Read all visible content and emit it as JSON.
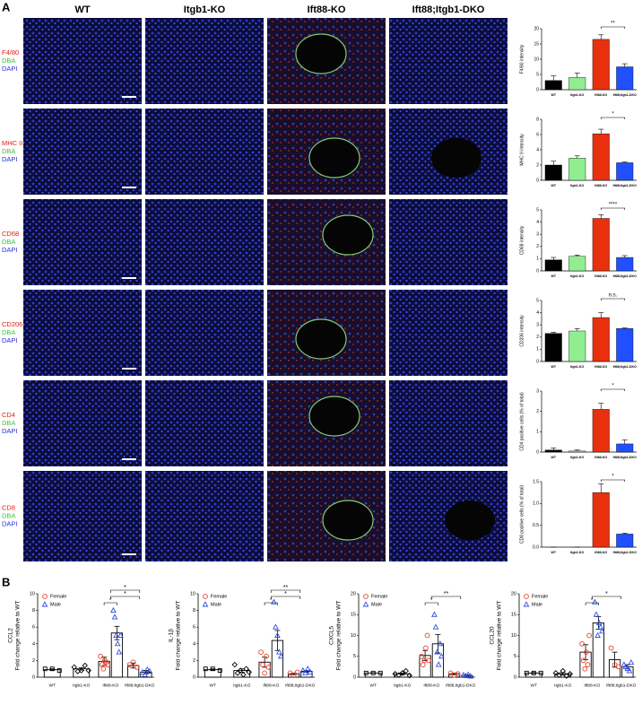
{
  "panel_labels": [
    "A",
    "B"
  ],
  "columns": [
    "WT",
    "Itgb1-KO",
    "Ift88-KO",
    "Ift88;Itgb1-DKO"
  ],
  "rows": [
    {
      "stain": "F4/80",
      "dba": "DBA",
      "dapi": "DAPI"
    },
    {
      "stain": "MHC II",
      "dba": "DBA",
      "dapi": "DAPI"
    },
    {
      "stain": "CD68",
      "dba": "DBA",
      "dapi": "DAPI"
    },
    {
      "stain": "CD206",
      "dba": "DBA",
      "dapi": "DAPI"
    },
    {
      "stain": "CD4",
      "dba": "DBA",
      "dapi": "DAPI"
    },
    {
      "stain": "CD8",
      "dba": "DBA",
      "dapi": "DAPI"
    }
  ],
  "chart_data": [
    {
      "type": "bar",
      "ylabel": "F4/80 intensity",
      "categories": [
        "WT",
        "Itgb1-KO",
        "Ift88-KO",
        "Ift88;Itgb1-DKO"
      ],
      "colors": [
        "#000000",
        "#90ee90",
        "#e8300e",
        "#2050ff"
      ],
      "values": [
        3,
        4,
        16.5,
        7.5
      ],
      "errors": [
        1.5,
        1.5,
        1.5,
        1
      ],
      "ylim": [
        0,
        20
      ],
      "yticks": [
        0,
        5,
        10,
        15,
        20
      ],
      "annotations": [
        "**"
      ]
    },
    {
      "type": "bar",
      "ylabel": "MHC II intensity",
      "categories": [
        "WT",
        "Itgb1-KO",
        "Ift88-KO",
        "Ift88;Itgb1-DKO"
      ],
      "colors": [
        "#000000",
        "#90ee90",
        "#e8300e",
        "#2050ff"
      ],
      "values": [
        2,
        2.9,
        6.1,
        2.3
      ],
      "errors": [
        0.5,
        0.3,
        0.6,
        0.1
      ],
      "ylim": [
        0,
        8
      ],
      "yticks": [
        0,
        2,
        4,
        6,
        8
      ],
      "annotations": [
        "*"
      ]
    },
    {
      "type": "bar",
      "ylabel": "CD68 intensity",
      "categories": [
        "WT",
        "Itgb1-KO",
        "Ift88-KO",
        "Ift88;Itgb1-DKO"
      ],
      "colors": [
        "#000000",
        "#90ee90",
        "#e8300e",
        "#2050ff"
      ],
      "values": [
        0.9,
        1.2,
        4.3,
        1.1
      ],
      "errors": [
        0.2,
        0.1,
        0.3,
        0.15
      ],
      "ylim": [
        0,
        5
      ],
      "yticks": [
        0,
        1,
        2,
        3,
        4,
        5
      ],
      "annotations": [
        "****"
      ]
    },
    {
      "type": "bar",
      "ylabel": "CD206 intensity",
      "categories": [
        "WT",
        "Itgb1-KO",
        "Ift88-KO",
        "Ift88;Itgb1-DKO"
      ],
      "colors": [
        "#000000",
        "#90ee90",
        "#e8300e",
        "#2050ff"
      ],
      "values": [
        2.3,
        2.5,
        3.6,
        2.7
      ],
      "errors": [
        0.1,
        0.2,
        0.4,
        0.05
      ],
      "ylim": [
        0,
        5
      ],
      "yticks": [
        0,
        1,
        2,
        3,
        4,
        5
      ],
      "annotations": [
        "n.s."
      ]
    },
    {
      "type": "bar",
      "ylabel": "CD4 positive cells (% of total)",
      "categories": [
        "WT",
        "Itgb1-KO",
        "Ift88-KO",
        "Ift88;Itgb1-DKO"
      ],
      "colors": [
        "#000000",
        "#90ee90",
        "#e8300e",
        "#2050ff"
      ],
      "values": [
        0.1,
        0.05,
        2.1,
        0.4
      ],
      "errors": [
        0.1,
        0.05,
        0.3,
        0.2
      ],
      "ylim": [
        0,
        3
      ],
      "yticks": [
        0,
        1,
        2,
        3
      ],
      "annotations": [
        "*"
      ]
    },
    {
      "type": "bar",
      "ylabel": "CD8 positive cells (% of total)",
      "categories": [
        "WT",
        "Itgb1-KO",
        "Ift88-KO",
        "Ift88;Itgb1-DKO"
      ],
      "colors": [
        "#000000",
        "#90ee90",
        "#e8300e",
        "#2050ff"
      ],
      "values": [
        0,
        0,
        1.25,
        0.3
      ],
      "errors": [
        0,
        0,
        0.2,
        0.02
      ],
      "ylim": [
        0,
        1.5
      ],
      "yticks": [
        {
          "value": 0,
          "label": "0.0"
        },
        {
          "value": 0.5,
          "label": "0.5"
        },
        {
          "value": 1,
          "label": "1.0"
        },
        {
          "value": 1.5,
          "label": "1.5"
        }
      ],
      "annotations": [
        "*"
      ]
    },
    {
      "type": "dotbar",
      "title": "CCL2",
      "ylabel": "Fold change relative to WT",
      "categories": [
        "WT",
        "Itgb1-KO",
        "Ift88-KO",
        "Ift88;Itgb1-DKO"
      ],
      "values": [
        0.9,
        1.0,
        null,
        null
      ],
      "errors": [
        0.1,
        0.15,
        null,
        null
      ],
      "points": [
        [
          1,
          1,
          0.8
        ],
        [
          1.2,
          0.7,
          0.8,
          1.4,
          0.8
        ],
        [],
        []
      ],
      "series": [
        {
          "name": "Female",
          "color": "#e8402a",
          "values": [
            null,
            null,
            1.9,
            1.4
          ],
          "errors": [
            null,
            null,
            0.5,
            0.3
          ],
          "points": [
            [],
            [],
            [
              2.5,
              1.5,
              1.0,
              2.0,
              1.8,
              1.5
            ],
            [
              1.5,
              1.8,
              1.2
            ]
          ]
        },
        {
          "name": "Male",
          "color": "#3050e0",
          "values": [
            null,
            null,
            5.3,
            0.6
          ],
          "errors": [
            null,
            null,
            0.8,
            0.2
          ],
          "points": [
            [],
            [],
            [
              8,
              7.2,
              5,
              4,
              3,
              5
            ],
            [
              0.6,
              0.3,
              0.9,
              0.7
            ]
          ]
        }
      ],
      "ylim": [
        0,
        10
      ],
      "yticks": [
        0,
        2,
        4,
        6,
        8,
        10
      ],
      "annotations": [
        "*",
        "*",
        "*"
      ]
    },
    {
      "type": "dotbar",
      "title": "IL-1β",
      "ylabel": "Fold change relative to WT",
      "categories": [
        "WT",
        "Itgb1-KO",
        "Ift88-KO",
        "Ift88;Itgb1-DKO"
      ],
      "values": [
        0.9,
        0.8,
        null,
        null
      ],
      "errors": [
        0.1,
        0.2,
        null,
        null
      ],
      "points": [
        [
          1,
          1,
          0.8
        ],
        [
          1.5,
          0.5,
          0.8,
          0.3,
          1.0,
          0.6
        ],
        [],
        []
      ],
      "series": [
        {
          "name": "Female",
          "color": "#e8402a",
          "values": [
            null,
            null,
            1.8,
            0.4
          ],
          "errors": [
            null,
            null,
            0.6,
            0.1
          ],
          "points": [
            [],
            [],
            [
              3,
              1.5,
              0.5,
              2.5,
              1.2
            ],
            [
              0.5,
              0.2,
              0.6
            ]
          ]
        },
        {
          "name": "Male",
          "color": "#3050e0",
          "values": [
            null,
            null,
            4.4,
            0.7
          ],
          "errors": [
            null,
            null,
            1.2,
            0.1
          ],
          "points": [
            [],
            [],
            [
              9,
              6,
              5,
              3,
              2.5
            ],
            [
              0.8,
              0.5,
              1.0,
              0.6
            ]
          ]
        }
      ],
      "ylim": [
        0,
        10
      ],
      "yticks": [
        0,
        2,
        4,
        6,
        8,
        10
      ],
      "annotations": [
        "*",
        "*",
        "**"
      ]
    },
    {
      "type": "dotbar",
      "title": "CXCL5",
      "ylabel": "Fold change relative to WT",
      "categories": [
        "WT",
        "Itgb1-KO",
        "Ift88-KO",
        "Ift88;Itgb1-DKO"
      ],
      "values": [
        1,
        0.8,
        null,
        null
      ],
      "errors": [
        0.05,
        0.2,
        null,
        null
      ],
      "points": [
        [
          1,
          1,
          1
        ],
        [
          0.8,
          0.5,
          1,
          1.5,
          0.4
        ],
        [],
        []
      ],
      "series": [
        {
          "name": "Female",
          "color": "#e8402a",
          "values": [
            null,
            null,
            5.2,
            0.8
          ],
          "errors": [
            null,
            null,
            1.2,
            0.2
          ],
          "points": [
            [],
            [],
            [
              5,
              3,
              4,
              7,
              10,
              4
            ],
            [
              1,
              0.5,
              0.8
            ]
          ]
        },
        {
          "name": "Male",
          "color": "#3050e0",
          "values": [
            null,
            null,
            8,
            0.4
          ],
          "errors": [
            null,
            null,
            2.2,
            0.1
          ],
          "points": [
            [],
            [],
            [
              15,
              12,
              6,
              3,
              8,
              5
            ],
            [
              0.5,
              0.3,
              0.6,
              0.2
            ]
          ]
        }
      ],
      "ylim": [
        0,
        20
      ],
      "yticks": [
        0,
        5,
        10,
        15,
        20
      ],
      "annotations": [
        "*",
        "**"
      ]
    },
    {
      "type": "dotbar",
      "title": "CCL20",
      "ylabel": "Fold change relative to WT",
      "categories": [
        "WT",
        "Itgb1-KO",
        "Ift88-KO",
        "Ift88;Itgb1-DKO"
      ],
      "values": [
        1,
        0.8,
        null,
        null
      ],
      "errors": [
        0.1,
        0.3,
        null,
        null
      ],
      "points": [
        [
          1,
          1,
          1
        ],
        [
          1,
          0.5,
          1.5,
          0.3,
          0.8
        ],
        [],
        []
      ],
      "series": [
        {
          "name": "Female",
          "color": "#e8402a",
          "values": [
            null,
            null,
            6,
            4.2
          ],
          "errors": [
            null,
            null,
            1.8,
            1.8
          ],
          "points": [
            [],
            [],
            [
              8,
              4,
              2,
              6,
              3,
              10
            ],
            [
              7,
              3,
              2.5
            ]
          ]
        },
        {
          "name": "Male",
          "color": "#3050e0",
          "values": [
            null,
            null,
            13,
            2.5
          ],
          "errors": [
            null,
            null,
            1.5,
            0.5
          ],
          "points": [
            [],
            [],
            [
              18,
              15,
              10,
              13,
              12,
              11
            ],
            [
              3,
              2.5,
              2,
              1.5,
              3.5
            ]
          ]
        }
      ],
      "ylim": [
        0,
        20
      ],
      "yticks": [
        0,
        5,
        10,
        15,
        20
      ],
      "annotations": [
        "*",
        "*"
      ]
    }
  ]
}
